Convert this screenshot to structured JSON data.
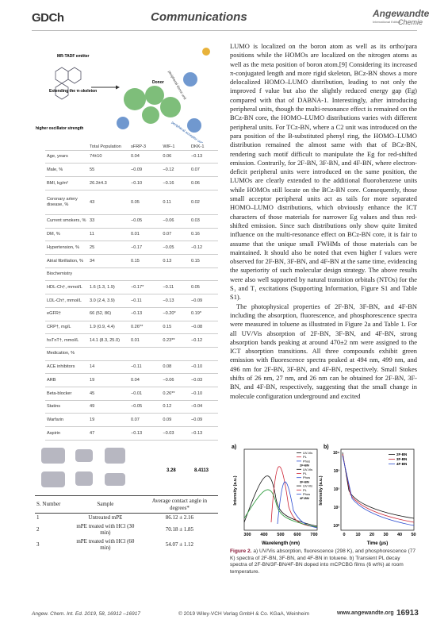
{
  "header": {
    "logo": "GDCh",
    "section": "Communications",
    "journal": "Angewandte",
    "edition": "International Edition",
    "journal_sub": "Chemie"
  },
  "figure_top": {
    "labels": [
      "MR-TADF emitter",
      "Extending the π-skeleton",
      "peripheral donor unit",
      "Donor",
      "higher oscillator strength",
      "peripheral acceptor unit"
    ]
  },
  "table1": {
    "columns": [
      "Total Population",
      "sFRP-3",
      "WIF-1",
      "DKK-1"
    ],
    "rows": [
      [
        "Age, years",
        "74±10",
        "0.04",
        "0.06",
        "−0.13"
      ],
      [
        "Male, %",
        "55",
        "−0.09",
        "−0.12",
        "0.07"
      ],
      [
        "BMI, kg/m²",
        "26.3±4.3",
        "−0.10",
        "−0.16",
        "0.06"
      ],
      [
        "Coronary artery disease, %",
        "43",
        "0.05",
        "0.11",
        "0.02"
      ],
      [
        "Current smokers, %",
        "33",
        "−0.05",
        "−0.06",
        "0.03"
      ],
      [
        "DM, %",
        "11",
        "0.01",
        "0.07",
        "0.16"
      ],
      [
        "Hypertension, %",
        "25",
        "−0.17",
        "−0.05",
        "−0.12"
      ],
      [
        "Atrial fibrillation, %",
        "34",
        "0.15",
        "0.13",
        "0.15"
      ],
      [
        "Biochemistry"
      ],
      [
        "HDL-Ch†, mmol/L",
        "1.6 (1.3, 1.9)",
        "−0.17*",
        "−0.11",
        "0.05"
      ],
      [
        "LDL-Ch†, mmol/L",
        "3.0 (2.4, 3.9)",
        "−0.11",
        "−0.13",
        "−0.09"
      ],
      [
        "eGFR†",
        "66 (52, 86)",
        "−0.13",
        "−0.20*",
        "0.19*"
      ],
      [
        "CRP†, mg/L",
        "1.9 (0.9, 4.4)",
        "0.26**",
        "0.15",
        "−0.08"
      ],
      [
        "hsTnT†, mmol/L",
        "14.1 (8.3, 25.0)",
        "0.01",
        "0.23**",
        "−0.12"
      ],
      [
        "Medication, %"
      ],
      [
        "ACE inhibitors",
        "14",
        "−0.11",
        "0.08",
        "−0.10"
      ],
      [
        "ARB",
        "19",
        "0.04",
        "−0.06",
        "−0.03"
      ],
      [
        "Beta-blocker",
        "45",
        "−0.01",
        "0.26**",
        "−0.10"
      ],
      [
        "Statins",
        "49",
        "−0.05",
        "0.12",
        "−0.04"
      ],
      [
        "Warfarin",
        "19",
        "0.07",
        "0.09",
        "−0.09"
      ],
      [
        "Aspirin",
        "47",
        "−0.13",
        "−0.03",
        "−0.13"
      ]
    ]
  },
  "figure_mid": {
    "labels": [
      "3.28",
      "8.4113"
    ]
  },
  "table2": {
    "columns": [
      "S. Number",
      "Sample",
      "Average contact angle in degrees*"
    ],
    "rows": [
      [
        "1",
        "Untreated mPE",
        "86.12 ± 2.16"
      ],
      [
        "2",
        "mPE treated with HCl (30 min)",
        "70.18 ± 1.85"
      ],
      [
        "3",
        "mPE treated with HCl (60 min)",
        "54.07 ± 1.12"
      ]
    ]
  },
  "body": {
    "paragraphs": [
      "LUMO is localized on the boron atom as well as its ortho/para positions while the HOMOs are localized on the nitrogen atoms as well as the meta position of boron atom.[9] Considering its increased π-conjugated length and more rigid skeleton, BCz-BN shows a more delocalized HOMO–LUMO distribution, leading to not only the improved f value but also the slightly reduced energy gap (Eg) compared with that of DABNA-1. Interestingly, after introducing peripheral units, though the multi-resonance effect is remained on the BCz-BN core, the HOMO–LUMO distributions varies with different peripheral units. For TCz-BN, where a C2 unit was introduced on the para position of the B-substituted phenyl ring, the HOMO–LUMO distribution remained the almost same with that of BCz-BN, rendering such motif difficult to manipulate the Eg for red-shifted emission. Contrarily, for 2F-BN, 3F-BN, and 4F-BN, where electron-deficit peripheral units were introduced on the same position, the LUMOs are clearly extended to the additional fluorobenzene units while HOMOs still locate on the BCz-BN core. Consequently, those small acceptor peripheral units act as tails for more separated HOMO–LUMO distributions, which obviously enhance the ICT characters of those materials for narrower Eg values and thus red-shifted emission. Since such distributions only show quite limited influence on the multi-resonance effect on BCz-BN core, it is fair to assume that the unique small FWHMs of those materials can be maintained. It should also be noted that even higher f values were observed for 2F-BN, 3F-BN, and 4F-BN at the same time, evidencing the superiority of such molecular design strategy. The above results were also well supported by natural transition orbitals (NTOs) for the S₁ and T₁ excitations (Supporting Information, Figure S1 and Table S1).",
      "The photophysical properties of 2F-BN, 3F-BN, and 4F-BN including the absorption, fluorescence, and phosphorescence spectra were measured in toluene as illustrated in Figure 2a and Table 1. For all UV/Vis absorption of 2F-BN, 3F-BN, and 4F-BN, strong absorption bands peaking at around 470±2 nm were assigned to the ICT absorption transitions. All three compounds exhibit green emission with fluorescence spectra peaked at 494 nm, 499 nm, and 496 nm for 2F-BN, 3F-BN, and 4F-BN, respectively. Small Stokes shifts of 26 nm, 27 nm, and 26 nm can be obtained for 2F-BN, 3F-BN, and 4F-BN, respectively, suggesting that the small change in molecule configuration underground and excited"
    ]
  },
  "figure2": {
    "panel_a": {
      "label": "a)",
      "ylabel": "Intensity (a.u.)",
      "xlabel": "Wavelength (nm)",
      "xticks": [
        "300",
        "400",
        "500",
        "600",
        "700"
      ],
      "legend": [
        "UV-Vis",
        "PL",
        "Phos",
        "2F-BN",
        "UV-Vis",
        "PL",
        "Phos",
        "3F-BN",
        "UV-Vis",
        "PL",
        "Phos",
        "4F-BN"
      ]
    },
    "panel_b": {
      "label": "b)",
      "ylabel": "Intensity (a.u.)",
      "xlabel": "Time (μs)",
      "xticks": [
        "0",
        "10",
        "20",
        "30",
        "40",
        "50"
      ],
      "yticks": [
        "10⁴",
        "10³",
        "10²",
        "10¹",
        "10⁰"
      ],
      "legend": [
        "2F-BN",
        "3F-BN",
        "4F-BN"
      ]
    },
    "caption_label": "Figure 2.",
    "caption": "a) UV/Vis absorption, fluorescence (298 K), and phosphorescence (77 K) spectra of 2F-BN, 3F-BN, and 4F-BN in toluene. b) Transient PL decay spectra of 2F-BN/3F-BN/4F-BN doped into mCPCBG films (6 wt%) at room temperature."
  },
  "footer": {
    "citation": "Angew. Chem. Int. Ed. 2019, 58, 16912 –16917",
    "copyright": "© 2019 Wiley-VCH Verlag GmbH & Co. KGaA, Weinheim",
    "url": "www.angewandte.org",
    "page": "16913"
  }
}
